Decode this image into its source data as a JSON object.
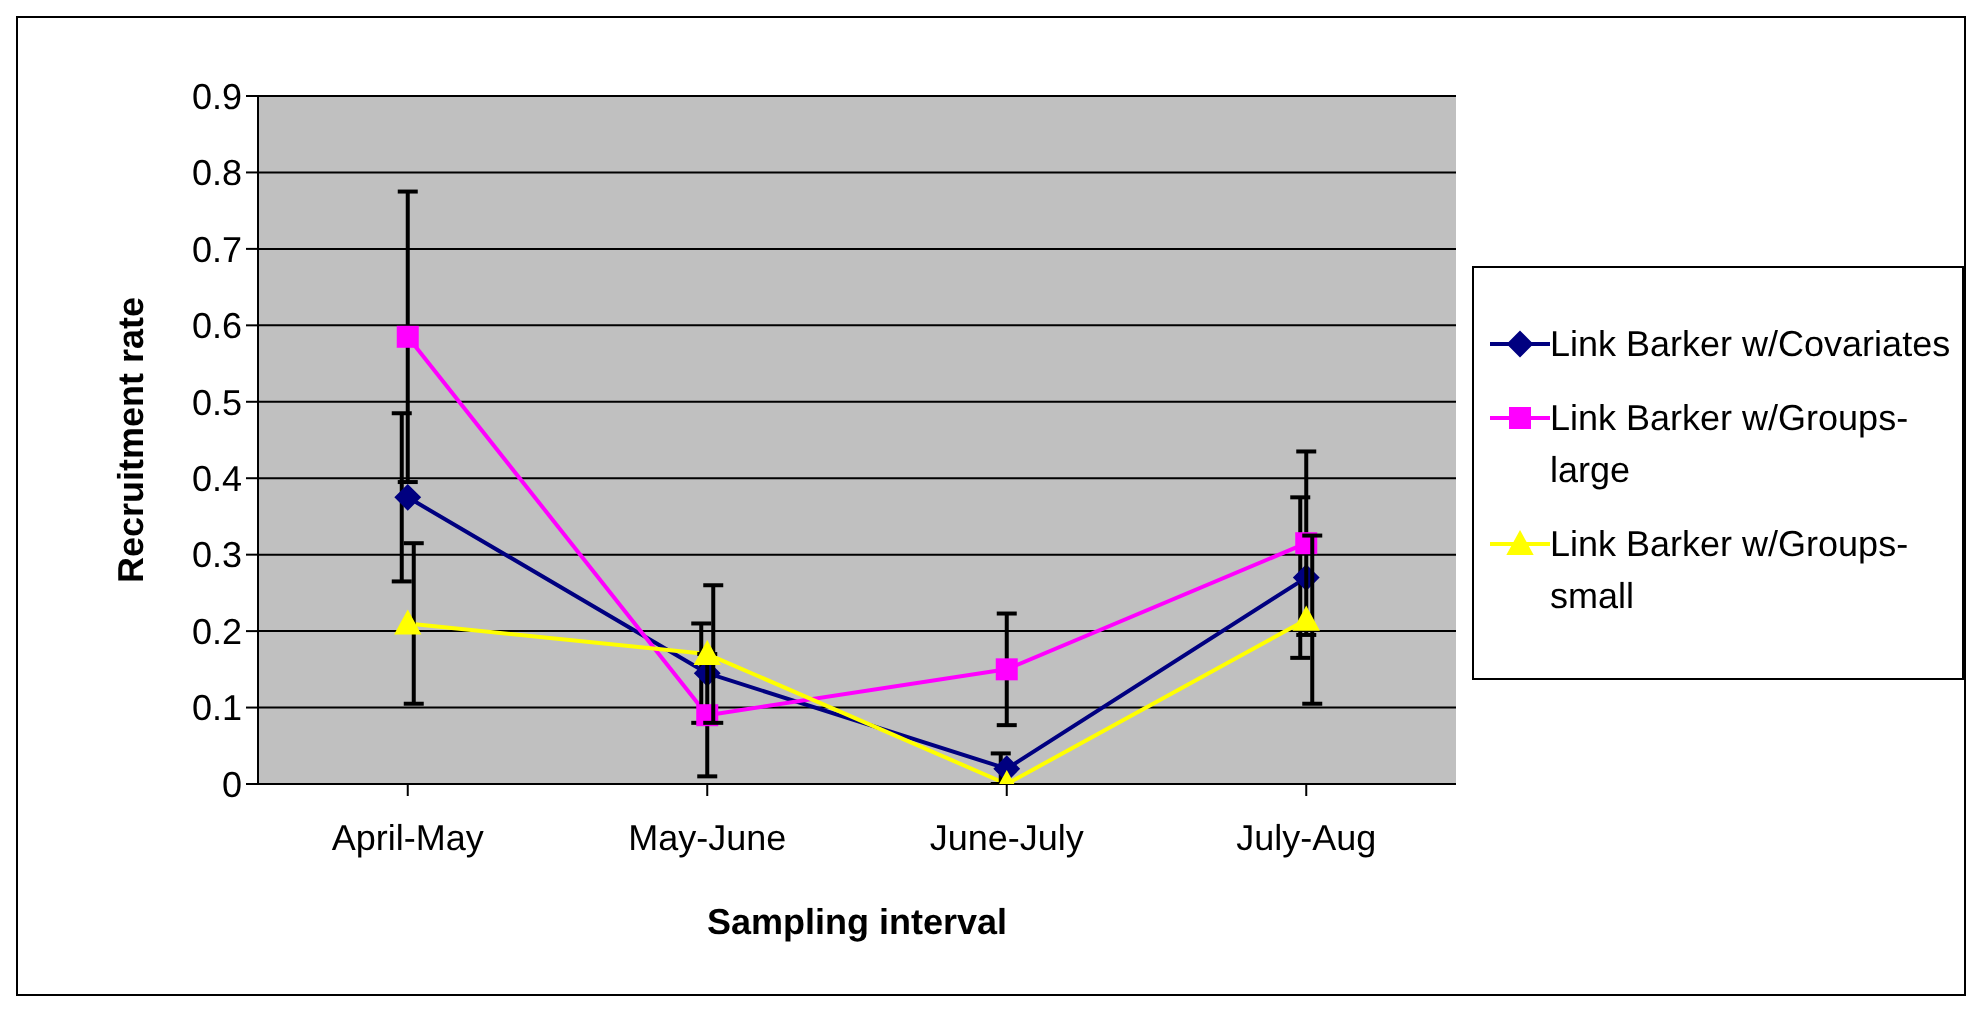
{
  "chart_data": {
    "type": "line",
    "xlabel": "Sampling interval",
    "ylabel": "Recruitment rate",
    "categories": [
      "April-May",
      "May-June",
      "June-July",
      "July-Aug"
    ],
    "series": [
      {
        "name": "Link Barker w/Covariates",
        "color": "#000080",
        "marker": "diamond",
        "values": [
          0.375,
          0.145,
          0.02,
          0.27
        ],
        "errors": [
          0.11,
          0.065,
          0.02,
          0.105
        ]
      },
      {
        "name": "Link Barker w/Groups-large",
        "color": "#ff00ff",
        "marker": "square",
        "values": [
          0.585,
          0.09,
          0.15,
          0.315
        ],
        "errors": [
          0.19,
          0.08,
          0.073,
          0.12
        ]
      },
      {
        "name": "Link Barker w/Groups-small",
        "color": "#ffff00",
        "marker": "triangle",
        "values": [
          0.21,
          0.17,
          0,
          0.215
        ],
        "errors": [
          0.105,
          0.09,
          null,
          0.11
        ]
      }
    ],
    "ylim": [
      0,
      0.9
    ],
    "yticks": [
      0,
      0.1,
      0.2,
      0.3,
      0.4,
      0.5,
      0.6,
      0.7,
      0.8,
      0.9
    ],
    "grid": "y",
    "legend": "right"
  }
}
